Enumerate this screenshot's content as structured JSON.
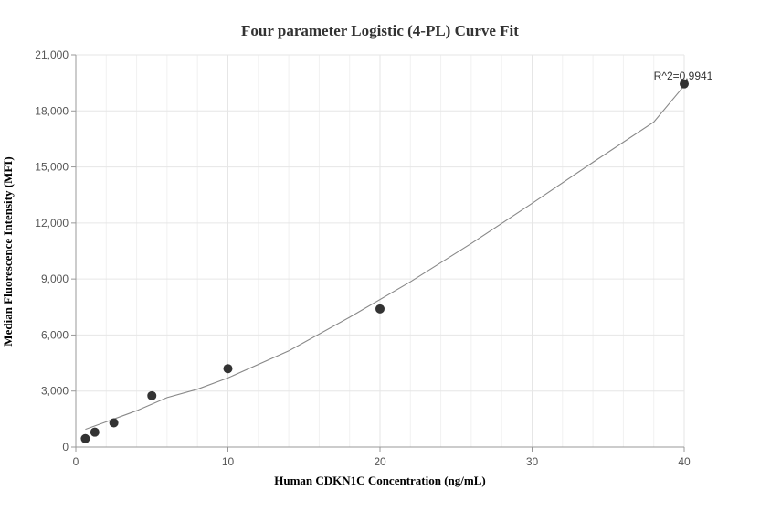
{
  "chart_data": {
    "type": "scatter",
    "title": "Four parameter Logistic (4-PL) Curve Fit",
    "xlabel": "Human CDKN1C Concentration (ng/mL)",
    "ylabel": "Median Fluorescence Intensity (MFI)",
    "xlim": [
      0,
      40
    ],
    "ylim": [
      0,
      21000
    ],
    "x_ticks": [
      0,
      10,
      20,
      30,
      40
    ],
    "x_tick_labels": [
      "0",
      "10",
      "20",
      "30",
      "40"
    ],
    "y_ticks": [
      0,
      3000,
      6000,
      9000,
      12000,
      15000,
      18000,
      21000
    ],
    "y_tick_labels": [
      "0",
      "3,000",
      "6,000",
      "9,000",
      "12,000",
      "15,000",
      "18,000",
      "21,000"
    ],
    "grid": true,
    "points": [
      {
        "x": 0.625,
        "y": 450
      },
      {
        "x": 1.25,
        "y": 800
      },
      {
        "x": 2.5,
        "y": 1300
      },
      {
        "x": 5,
        "y": 2750
      },
      {
        "x": 10,
        "y": 4200
      },
      {
        "x": 20,
        "y": 7400
      },
      {
        "x": 40,
        "y": 19450
      }
    ],
    "fit_curve": {
      "x": [
        0.625,
        2,
        4,
        6,
        8,
        10,
        14,
        18,
        22,
        26,
        30,
        34,
        38,
        40
      ],
      "y": [
        950,
        1350,
        1950,
        2650,
        3100,
        3700,
        5150,
        6950,
        8850,
        10900,
        13050,
        15250,
        17400,
        19350
      ]
    },
    "annotation": "R^2=0.9941",
    "colors": {
      "points": "#333333",
      "curve": "#888888",
      "grid": "#e6e6e6",
      "axis": "#999999"
    }
  }
}
